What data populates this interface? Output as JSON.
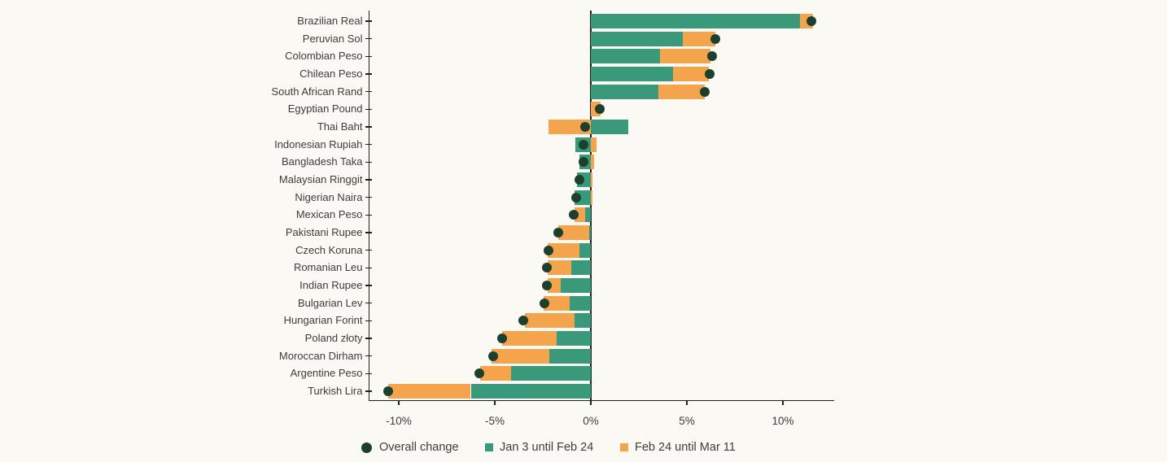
{
  "chart_data": {
    "type": "bar",
    "orientation": "horizontal",
    "stacked": true,
    "title": "",
    "xlabel": "",
    "ylabel": "",
    "grid": false,
    "legend_position": "bottom",
    "overall_label": "Overall change",
    "overall_marker_color": "#1C3F2E",
    "series": [
      {
        "name": "Jan 3 until Feb 24",
        "key": "jan3_feb24",
        "color": "#3B997B"
      },
      {
        "name": "Feb 24 until Mar 11",
        "key": "feb24_mar11",
        "color": "#F4A44C"
      }
    ],
    "x_axis": {
      "unit": "%",
      "min": -11.6,
      "max": 12.7,
      "ticks": [
        {
          "value": -10,
          "label": "-10%"
        },
        {
          "value": -5,
          "label": "-5%"
        },
        {
          "value": 0,
          "label": "0%"
        },
        {
          "value": 5,
          "label": "5%"
        },
        {
          "value": 10,
          "label": "10%"
        }
      ]
    },
    "rows": [
      {
        "label": "Brazilian Real",
        "jan3_feb24": 10.9,
        "feb24_mar11": 0.65,
        "overall": 11.5
      },
      {
        "label": "Peruvian Sol",
        "jan3_feb24": 4.8,
        "feb24_mar11": 1.7,
        "overall": 6.5
      },
      {
        "label": "Colombian Peso",
        "jan3_feb24": 3.6,
        "feb24_mar11": 2.65,
        "overall": 6.3
      },
      {
        "label": "Chilean Peso",
        "jan3_feb24": 4.3,
        "feb24_mar11": 1.85,
        "overall": 6.2
      },
      {
        "label": "South African Rand",
        "jan3_feb24": 3.5,
        "feb24_mar11": 2.45,
        "overall": 5.95
      },
      {
        "label": "Egyptian Pound",
        "jan3_feb24": 0.0,
        "feb24_mar11": 0.5,
        "overall": 0.45
      },
      {
        "label": "Thai Baht",
        "jan3_feb24": 1.95,
        "feb24_mar11": -2.2,
        "overall": -0.3
      },
      {
        "label": "Indonesian Rupiah",
        "jan3_feb24": -0.8,
        "feb24_mar11": 0.3,
        "overall": -0.4
      },
      {
        "label": "Bangladesh Taka",
        "jan3_feb24": -0.6,
        "feb24_mar11": 0.15,
        "overall": -0.4
      },
      {
        "label": "Malaysian Ringgit",
        "jan3_feb24": -0.7,
        "feb24_mar11": 0.1,
        "overall": -0.6
      },
      {
        "label": "Nigerian Naira",
        "jan3_feb24": -0.85,
        "feb24_mar11": 0.1,
        "overall": -0.75
      },
      {
        "label": "Mexican Peso",
        "jan3_feb24": -0.3,
        "feb24_mar11": -0.55,
        "overall": -0.9
      },
      {
        "label": "Pakistani Rupee",
        "jan3_feb24": -0.1,
        "feb24_mar11": -1.6,
        "overall": -1.7
      },
      {
        "label": "Czech Koruna",
        "jan3_feb24": -0.6,
        "feb24_mar11": -1.65,
        "overall": -2.2
      },
      {
        "label": "Romanian Leu",
        "jan3_feb24": -1.0,
        "feb24_mar11": -1.25,
        "overall": -2.3
      },
      {
        "label": "Indian Rupee",
        "jan3_feb24": -1.55,
        "feb24_mar11": -0.7,
        "overall": -2.3
      },
      {
        "label": "Bulgarian Lev",
        "jan3_feb24": -1.1,
        "feb24_mar11": -1.35,
        "overall": -2.4
      },
      {
        "label": "Hungarian Forint",
        "jan3_feb24": -0.85,
        "feb24_mar11": -2.6,
        "overall": -3.5
      },
      {
        "label": "Poland złoty",
        "jan3_feb24": -1.8,
        "feb24_mar11": -2.8,
        "overall": -4.6
      },
      {
        "label": "Moroccan Dirham",
        "jan3_feb24": -2.15,
        "feb24_mar11": -3.0,
        "overall": -5.1
      },
      {
        "label": "Argentine Peso",
        "jan3_feb24": -4.15,
        "feb24_mar11": -1.6,
        "overall": -5.8
      },
      {
        "label": "Turkish Lira",
        "jan3_feb24": -6.25,
        "feb24_mar11": -4.3,
        "overall": -10.55
      }
    ]
  },
  "colors": {
    "background": "#FBF9F3",
    "axis": "#1F1F1F",
    "text": "#3C3C3C"
  }
}
